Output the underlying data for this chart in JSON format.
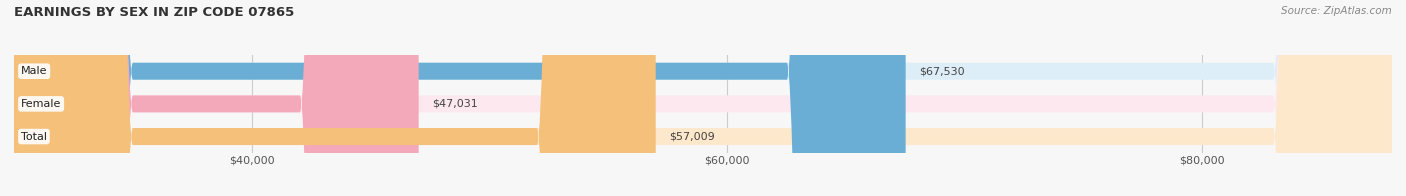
{
  "title": "EARNINGS BY SEX IN ZIP CODE 07865",
  "source": "Source: ZipAtlas.com",
  "categories": [
    "Male",
    "Female",
    "Total"
  ],
  "values": [
    67530,
    47031,
    57009
  ],
  "bar_colors": [
    "#6aaed6",
    "#f4a9ba",
    "#f4c07a"
  ],
  "bar_bg_colors": [
    "#ddeef8",
    "#fde8ef",
    "#fde8cc"
  ],
  "x_min": 30000,
  "x_max": 88000,
  "x_ticks": [
    40000,
    60000,
    80000
  ],
  "x_tick_labels": [
    "$40,000",
    "$60,000",
    "$80,000"
  ],
  "background_color": "#f7f7f7",
  "bar_height": 0.52,
  "figsize": [
    14.06,
    1.96
  ],
  "dpi": 100
}
